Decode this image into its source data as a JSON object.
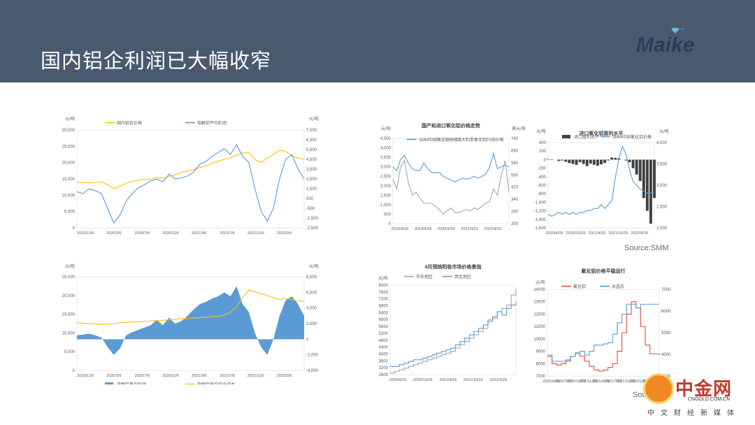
{
  "slide": {
    "title": "国内铝企利润已大幅收窄",
    "logo_text": "Maike",
    "source1": "Source:SMM",
    "source2": "Sou",
    "watermark": {
      "main": "中金网",
      "url": "CNGOLD.COM.CN",
      "sub": "中文财经新媒体"
    }
  },
  "colors": {
    "header": "#4a5a6e",
    "gold": "#ffc000",
    "blue": "#5b9bd5",
    "gray": "#a6a6a6",
    "red": "#e8483f",
    "dark": "#404040"
  },
  "chart_data": [
    {
      "id": "c1",
      "type": "line",
      "unit_left": "元/吨",
      "unit_right": "元/吨",
      "legend": [
        "国内铝锭价格",
        "电解铝平均利润"
      ],
      "x_ticks": [
        "2019/11/6",
        "2020/3/6",
        "2020/7/6",
        "2020/11/6",
        "2021/3/6",
        "2021/7/6",
        "2021/11/6",
        "2022/3/6"
      ],
      "y_left_ticks": [
        "30,000",
        "25,000",
        "20,000",
        "15,000",
        "10,000",
        "5,000",
        "0"
      ],
      "y_right_ticks": [
        "7,500",
        "6,500",
        "5,500",
        "4,500",
        "3,500",
        "2,500",
        "1,500",
        "500",
        "-500",
        "-1,500",
        "-2,500"
      ],
      "ylim_left": [
        0,
        30000
      ],
      "ylim_right": [
        -2500,
        7500
      ],
      "series": [
        {
          "name": "国内铝锭价格",
          "axis": "left",
          "color": "#ffc000",
          "values": [
            14000,
            13900,
            13800,
            13900,
            14100,
            13200,
            12000,
            12800,
            13600,
            14300,
            14600,
            14800,
            15000,
            15400,
            15200,
            15800,
            16300,
            17000,
            17500,
            17800,
            18500,
            19000,
            19800,
            20500,
            21000,
            21500,
            22300,
            23000,
            23000,
            21000,
            20000,
            21500,
            22500,
            23800,
            23500,
            22000,
            21500,
            21000
          ]
        },
        {
          "name": "电解铝平均利润",
          "axis": "right",
          "color": "#5b9bd5",
          "values": [
            1200,
            1000,
            1500,
            1300,
            1000,
            -500,
            -2000,
            -1200,
            200,
            1000,
            1600,
            1900,
            2300,
            2500,
            2200,
            3000,
            2500,
            2600,
            2800,
            3200,
            4000,
            4300,
            4800,
            5200,
            5600,
            5000,
            6000,
            4800,
            4200,
            1500,
            -800,
            -1800,
            -500,
            2500,
            4500,
            5000,
            3500,
            2500
          ]
        }
      ]
    },
    {
      "id": "c2",
      "type": "area",
      "unit_left": "元/吨",
      "unit_right": "元/吨",
      "legend": [
        "电解铝平均利润",
        "电解铝平均完全成本"
      ],
      "x_ticks": [
        "2019/11/6",
        "2020/3/6",
        "2020/7/6",
        "2020/11/6",
        "2021/3/6",
        "2021/7/6",
        "2021/11/6",
        "2022/3/6"
      ],
      "y_left_ticks": [
        "25,000",
        "20,000",
        "15,000",
        "10,000",
        "5,000",
        "0"
      ],
      "y_right_ticks": [
        "8,000",
        "6,000",
        "4,000",
        "2,000",
        "0",
        "-2,000",
        "-4,000"
      ],
      "ylim_left": [
        0,
        25000
      ],
      "ylim_right": [
        -4000,
        8000
      ],
      "series": [
        {
          "name": "电解铝平均利润",
          "axis": "right",
          "color": "#5b9bd5",
          "values": [
            500,
            600,
            700,
            500,
            200,
            -1000,
            -2000,
            -1200,
            500,
            900,
            1200,
            1500,
            1800,
            2500,
            1800,
            2800,
            2000,
            2300,
            3000,
            3800,
            4500,
            4800,
            5200,
            5500,
            6000,
            5500,
            6800,
            4500,
            3500,
            800,
            -1000,
            -2000,
            0,
            3000,
            5000,
            5500,
            4500,
            3000
          ]
        },
        {
          "name": "电解铝平均完全成本",
          "axis": "left",
          "color": "#ffc000",
          "values": [
            12800,
            12600,
            12500,
            12400,
            12300,
            12400,
            12500,
            12700,
            12800,
            12900,
            13000,
            13100,
            13200,
            13300,
            13400,
            13500,
            13700,
            13800,
            13900,
            14000,
            14100,
            14200,
            14300,
            14500,
            14800,
            15500,
            17000,
            19500,
            21500,
            21000,
            20500,
            20000,
            19500,
            19000,
            19200,
            19000,
            18500,
            18500
          ]
        }
      ]
    },
    {
      "id": "c3",
      "type": "line",
      "title": "国产和进口氧化铝价格走势",
      "unit_left": "元/吨",
      "unit_right": "美元/吨",
      "legend": [
        "SMM中国氧化铝价格",
        "澳大利亚氧化铝FOB价格"
      ],
      "x_ticks": [
        "2018/4/29",
        "2019/4/29",
        "2020/4/29",
        "2021/4/29",
        "2022/4/29"
      ],
      "y_left_ticks": [
        "4,500",
        "4,000",
        "3,500",
        "3,000",
        "2,500",
        "2,000",
        "1,500",
        "1,000",
        "500",
        "0"
      ],
      "y_right_ticks": [
        "740",
        "660",
        "580",
        "500",
        "420",
        "340",
        "260",
        "200"
      ],
      "ylim_left": [
        0,
        4500
      ],
      "ylim_right": [
        200,
        740
      ],
      "series": [
        {
          "name": "SMM中国氧化铝价格",
          "axis": "left",
          "color": "#5b9bd5",
          "values": [
            3000,
            2800,
            3400,
            3600,
            3200,
            2900,
            2800,
            2800,
            3200,
            2900,
            2700,
            2700,
            2700,
            2500,
            2400,
            2300,
            2200,
            2300,
            2400,
            2350,
            2400,
            2500,
            2400,
            2500,
            2600,
            3000,
            3700,
            2900,
            3000,
            3100,
            3000
          ]
        },
        {
          "name": "澳大利亚氧化铝FOB价格",
          "axis": "right",
          "color": "#a6a6a6",
          "values": [
            480,
            420,
            560,
            600,
            460,
            380,
            400,
            360,
            330,
            330,
            330,
            310,
            290,
            260,
            280,
            300,
            270,
            270,
            280,
            290,
            280,
            300,
            290,
            310,
            330,
            340,
            420,
            380,
            500,
            600,
            400
          ]
        }
      ]
    },
    {
      "id": "c4",
      "type": "bar",
      "title": "进口氧化铝盈利水平",
      "unit_left": "元/吨",
      "unit_right": "元/吨",
      "legend": [
        "进口盈利水平",
        "SMM中国氧化铝价格"
      ],
      "x_ticks": [
        "2020/4/29",
        "2020/10/29",
        "2021/4/29",
        "2021/10/29",
        "2022/4/29"
      ],
      "y_left_ticks": [
        "400",
        "200",
        "0",
        "-200",
        "-400",
        "-600",
        "-800",
        "-1,000",
        "-1,200",
        "-1,400",
        "-1,600"
      ],
      "y_right_ticks": [
        "4,000",
        "3,500",
        "3,000",
        "2,500",
        "2,000"
      ],
      "ylim_left": [
        -1600,
        400
      ],
      "ylim_right": [
        2000,
        4200
      ],
      "series": [
        {
          "name": "进口盈利水平",
          "axis": "left",
          "color": "#404040",
          "values": [
            10,
            -10,
            0,
            -30,
            -20,
            -50,
            -80,
            -100,
            -120,
            -60,
            -100,
            -150,
            -90,
            -120,
            -140,
            -110,
            -80,
            -20,
            50,
            40,
            30,
            0,
            -20,
            -60,
            -200,
            -350,
            -500,
            -900,
            -1200,
            -1500,
            -900
          ]
        },
        {
          "name": "SMM中国氧化铝价格",
          "axis": "right",
          "color": "#5b9bd5",
          "values": [
            2350,
            2300,
            2350,
            2400,
            2350,
            2400,
            2350,
            2400,
            2350,
            2400,
            2400,
            2450,
            2450,
            2500,
            2500,
            2600,
            2500,
            2600,
            2700,
            3300,
            3800,
            4100,
            3900,
            3500,
            3200,
            3100,
            3000,
            2950,
            2900,
            2900,
            2900
          ]
        }
      ]
    },
    {
      "id": "c5",
      "type": "line",
      "title": "4月预焙阳极市场价格景指",
      "unit_left": "元/吨",
      "legend": [
        "华东地区",
        "西北地区"
      ],
      "x_ticks": [
        "2020/4/29",
        "2020/10/29",
        "2021/4/29",
        "2021/10/29",
        "2022/4/29"
      ],
      "y_left_ticks": [
        "8000",
        "7600",
        "7200",
        "6800",
        "6400",
        "6000",
        "5600",
        "5200",
        "4800",
        "4400",
        "4000",
        "3600",
        "3200",
        "2800"
      ],
      "ylim_left": [
        2800,
        8200
      ],
      "series": [
        {
          "name": "华东地区",
          "axis": "left",
          "color": "#a6a6a6",
          "values": [
            2900,
            3000,
            3100,
            3200,
            3300,
            3400,
            3500,
            3600,
            3700,
            3800,
            3900,
            4000,
            4100,
            4200,
            4400,
            4600,
            4800,
            5000,
            5200,
            5400,
            5600,
            6000,
            6200,
            6600,
            6800,
            7000,
            7600,
            8000
          ]
        },
        {
          "name": "西北地区",
          "axis": "left",
          "color": "#5b9bd5",
          "values": [
            3300,
            3300,
            3400,
            3500,
            3600,
            3700,
            3700,
            3800,
            3900,
            4000,
            4100,
            4200,
            4300,
            4400,
            4600,
            4800,
            5000,
            5200,
            5400,
            5600,
            5800,
            6100,
            6300,
            6600,
            6400,
            6800,
            7000,
            7200
          ]
        }
      ]
    },
    {
      "id": "c6",
      "type": "line",
      "title": "氟化铝价格平稳运行",
      "unit_left": "元/吨",
      "legend": [
        "氟化铝",
        "冰晶石"
      ],
      "x_ticks": [
        "2020/4/29",
        "2020/7/29",
        "2020/10/29",
        "2021/1/29",
        "2021/4/29",
        "2021/7/29",
        "2021/10/29",
        "2022/1/29",
        "2022/4/29"
      ],
      "y_left_ticks": [
        "14000",
        "13000",
        "12000",
        "11000",
        "10000",
        "9000",
        "8000",
        "7000"
      ],
      "y_right_ticks": [
        "7000",
        "6000",
        "5000",
        "4000",
        "3000"
      ],
      "ylim_left": [
        7000,
        14000
      ],
      "ylim_right": [
        3000,
        7200
      ],
      "series": [
        {
          "name": "氟化铝",
          "axis": "left",
          "color": "#e8483f",
          "values": [
            8600,
            8000,
            7900,
            8000,
            8300,
            8600,
            8800,
            8600,
            8200,
            7800,
            7500,
            7400,
            7500,
            7700,
            8000,
            9000,
            10500,
            12000,
            13000,
            12500,
            11000,
            9500,
            8800,
            8800,
            8700
          ]
        },
        {
          "name": "冰晶石",
          "axis": "left",
          "color": "#5b9bd5",
          "values": [
            8700,
            8200,
            8200,
            8200,
            8200,
            8600,
            8900,
            9000,
            8700,
            9000,
            9500,
            9500,
            9600,
            9700,
            10400,
            11300,
            12000,
            12800,
            12800,
            12500,
            12800,
            12800,
            12800,
            12800,
            12800
          ]
        }
      ]
    }
  ]
}
